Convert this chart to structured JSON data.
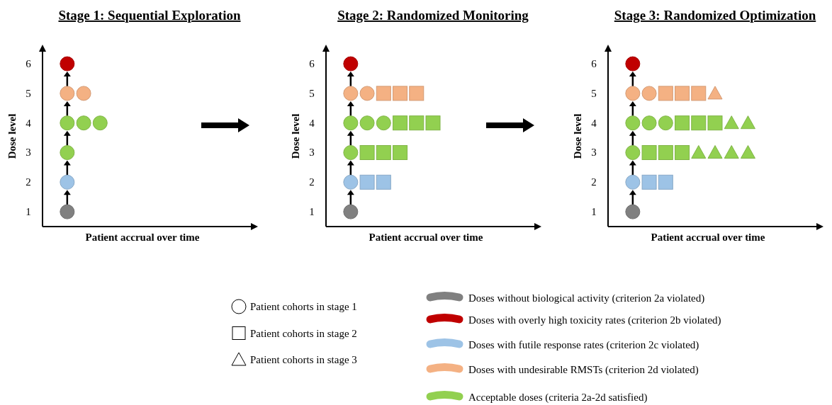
{
  "chart_data": [
    {
      "type": "scatter",
      "title": "Stage 1: Sequential Exploration",
      "xlabel": "Patient accrual over time",
      "ylabel": "Dose level",
      "categories": [
        null,
        null,
        null,
        null,
        null,
        null,
        null,
        null,
        null,
        null,
        null,
        null,
        null
      ],
      "ylim": [
        0.5,
        6.6
      ],
      "yticks": [
        1,
        2,
        3,
        4,
        5,
        6
      ],
      "grid": false,
      "series": [
        {
          "color": "#808080",
          "marker": "circle",
          "values": [
            null,
            1,
            null,
            null,
            null,
            null,
            null,
            null,
            null,
            null,
            null,
            null,
            null
          ]
        },
        {
          "color": "#9dc3e6",
          "marker": "circle",
          "values": [
            null,
            2,
            null,
            null,
            null,
            null,
            null,
            null,
            null,
            null,
            null,
            null,
            null
          ]
        },
        {
          "color": "#92d050",
          "marker": "circle",
          "values": [
            null,
            3,
            null,
            null,
            null,
            null,
            null,
            null,
            null,
            null,
            null,
            null,
            null
          ]
        },
        {
          "color": "#92d050",
          "marker": "circle",
          "values": [
            null,
            4,
            4,
            4,
            null,
            null,
            null,
            null,
            null,
            null,
            null,
            null,
            null
          ]
        },
        {
          "color": "#f4b183",
          "marker": "circle",
          "values": [
            null,
            5,
            5,
            null,
            null,
            null,
            null,
            null,
            null,
            null,
            null,
            null,
            null
          ]
        },
        {
          "color": "#c00000",
          "marker": "circle",
          "values": [
            null,
            6,
            null,
            null,
            null,
            null,
            null,
            null,
            null,
            null,
            null,
            null,
            null
          ]
        }
      ]
    },
    {
      "type": "scatter",
      "title": "Stage 2: Randomized Monitoring",
      "xlabel": "Patient accrual over time",
      "ylabel": "Dose level",
      "categories": [
        null,
        null,
        null,
        null,
        null,
        null,
        null,
        null,
        null,
        null,
        null,
        null,
        null
      ],
      "ylim": [
        0.5,
        6.6
      ],
      "yticks": [
        1,
        2,
        3,
        4,
        5,
        6
      ],
      "grid": false,
      "series": [
        {
          "color": "#808080",
          "marker": "circle",
          "values": [
            null,
            1,
            null,
            null,
            null,
            null,
            null,
            null,
            null,
            null,
            null,
            null,
            null
          ]
        },
        {
          "color": "#9dc3e6",
          "marker": "circle",
          "values": [
            null,
            2,
            null,
            null,
            null,
            null,
            null,
            null,
            null,
            null,
            null,
            null,
            null
          ]
        },
        {
          "color": "#9dc3e6",
          "marker": "square",
          "values": [
            null,
            null,
            2,
            2,
            null,
            null,
            null,
            null,
            null,
            null,
            null,
            null,
            null
          ]
        },
        {
          "color": "#92d050",
          "marker": "circle",
          "values": [
            null,
            3,
            null,
            null,
            null,
            null,
            null,
            null,
            null,
            null,
            null,
            null,
            null
          ]
        },
        {
          "color": "#92d050",
          "marker": "square",
          "values": [
            null,
            null,
            3,
            3,
            3,
            null,
            null,
            null,
            null,
            null,
            null,
            null,
            null
          ]
        },
        {
          "color": "#92d050",
          "marker": "circle",
          "values": [
            null,
            4,
            4,
            4,
            null,
            null,
            null,
            null,
            null,
            null,
            null,
            null,
            null
          ]
        },
        {
          "color": "#92d050",
          "marker": "square",
          "values": [
            null,
            null,
            null,
            null,
            4,
            4,
            4,
            null,
            null,
            null,
            null,
            null,
            null
          ]
        },
        {
          "color": "#f4b183",
          "marker": "circle",
          "values": [
            null,
            5,
            5,
            null,
            null,
            null,
            null,
            null,
            null,
            null,
            null,
            null,
            null
          ]
        },
        {
          "color": "#f4b183",
          "marker": "square",
          "values": [
            null,
            null,
            null,
            5,
            5,
            5,
            null,
            null,
            null,
            null,
            null,
            null,
            null
          ]
        },
        {
          "color": "#c00000",
          "marker": "circle",
          "values": [
            null,
            6,
            null,
            null,
            null,
            null,
            null,
            null,
            null,
            null,
            null,
            null,
            null
          ]
        }
      ]
    },
    {
      "type": "scatter",
      "title": "Stage 3: Randomized Optimization",
      "xlabel": "Patient accrual over time",
      "ylabel": "Dose level",
      "categories": [
        null,
        null,
        null,
        null,
        null,
        null,
        null,
        null,
        null,
        null,
        null,
        null,
        null
      ],
      "ylim": [
        0.5,
        6.6
      ],
      "yticks": [
        1,
        2,
        3,
        4,
        5,
        6
      ],
      "grid": false,
      "series": [
        {
          "color": "#808080",
          "marker": "circle",
          "values": [
            null,
            1,
            null,
            null,
            null,
            null,
            null,
            null,
            null,
            null,
            null,
            null,
            null
          ]
        },
        {
          "color": "#9dc3e6",
          "marker": "circle",
          "values": [
            null,
            2,
            null,
            null,
            null,
            null,
            null,
            null,
            null,
            null,
            null,
            null,
            null
          ]
        },
        {
          "color": "#9dc3e6",
          "marker": "square",
          "values": [
            null,
            null,
            2,
            2,
            null,
            null,
            null,
            null,
            null,
            null,
            null,
            null,
            null
          ]
        },
        {
          "color": "#92d050",
          "marker": "circle",
          "values": [
            null,
            3,
            null,
            null,
            null,
            null,
            null,
            null,
            null,
            null,
            null,
            null,
            null
          ]
        },
        {
          "color": "#92d050",
          "marker": "square",
          "values": [
            null,
            null,
            3,
            3,
            3,
            null,
            null,
            null,
            null,
            null,
            null,
            null,
            null
          ]
        },
        {
          "color": "#92d050",
          "marker": "triangle",
          "values": [
            null,
            null,
            null,
            null,
            null,
            3,
            3,
            3,
            3,
            null,
            null,
            null,
            null
          ]
        },
        {
          "color": "#92d050",
          "marker": "circle",
          "values": [
            null,
            4,
            4,
            4,
            null,
            null,
            null,
            null,
            null,
            null,
            null,
            null,
            null
          ]
        },
        {
          "color": "#92d050",
          "marker": "square",
          "values": [
            null,
            null,
            null,
            null,
            4,
            4,
            4,
            null,
            null,
            null,
            null,
            null,
            null
          ]
        },
        {
          "color": "#92d050",
          "marker": "triangle",
          "values": [
            null,
            null,
            null,
            null,
            null,
            null,
            null,
            4,
            4,
            null,
            null,
            null,
            null
          ]
        },
        {
          "color": "#f4b183",
          "marker": "circle",
          "values": [
            null,
            5,
            5,
            null,
            null,
            null,
            null,
            null,
            null,
            null,
            null,
            null,
            null
          ]
        },
        {
          "color": "#f4b183",
          "marker": "square",
          "values": [
            null,
            null,
            null,
            5,
            5,
            5,
            null,
            null,
            null,
            null,
            null,
            null,
            null
          ]
        },
        {
          "color": "#f4b183",
          "marker": "triangle",
          "values": [
            null,
            null,
            null,
            null,
            null,
            null,
            5,
            null,
            null,
            null,
            null,
            null,
            null
          ]
        },
        {
          "color": "#c00000",
          "marker": "circle",
          "values": [
            null,
            6,
            null,
            null,
            null,
            null,
            null,
            null,
            null,
            null,
            null,
            null,
            null
          ]
        }
      ]
    },
    {
      "type": "other",
      "series": [
        {
          "name": "Patient cohorts in stage 1",
          "marker": "circle"
        },
        {
          "name": "Patient cohorts in stage 2",
          "marker": "square"
        },
        {
          "name": "Patient cohorts in stage 3",
          "marker": "triangle"
        },
        {
          "name": "Doses without biological activity (criterion 2a violated)",
          "color": "#808080"
        },
        {
          "name": "Doses with overly high toxicity rates (criterion 2b violated)",
          "color": "#c00000"
        },
        {
          "name": "Doses with futile response rates (criterion 2c violated)",
          "color": "#9dc3e6"
        },
        {
          "name": "Doses with undesirable RMSTs (criterion 2d violated)",
          "color": "#f4b183"
        },
        {
          "name": "Acceptable doses (criteria 2a-2d satisfied)",
          "color": "#92d050"
        }
      ]
    }
  ]
}
